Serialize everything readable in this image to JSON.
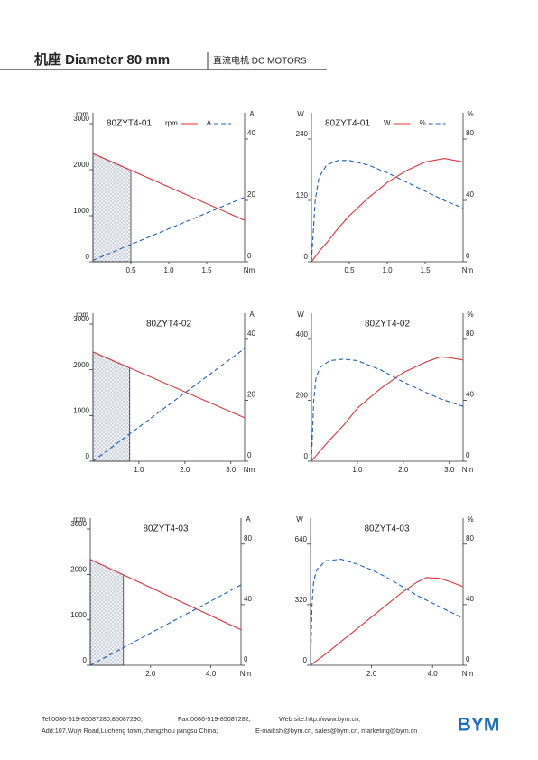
{
  "header": {
    "title": "机座 Diameter 80 mm",
    "subtitle": "直流电机 DC MOTORS"
  },
  "chart_data": [
    {
      "type": "line",
      "title": "80ZYT4-01",
      "xlabel": "Nm",
      "ylabel": "rpm",
      "y2label": "A",
      "x": [
        0,
        2.0
      ],
      "xlim": [
        0,
        2.0
      ],
      "xticks": [
        0.5,
        {
          "value": 1,
          "label": "1.0"
        },
        1.5
      ],
      "ylim": [
        0,
        3000
      ],
      "yticks": [
        0,
        1000,
        2000,
        3000
      ],
      "y2lim": [
        0,
        45
      ],
      "y2ticks": [
        0,
        20,
        40
      ],
      "highlight_x": [
        0,
        0.5
      ],
      "legend": true,
      "series": [
        {
          "name": "rpm",
          "color": "#e3303b",
          "line": "solid",
          "values": [
            2350,
            900
          ]
        },
        {
          "name": "A",
          "color": "#1f5fb0",
          "line": "dashed",
          "axis": "y2",
          "values": [
            0.5,
            21
          ]
        }
      ]
    },
    {
      "type": "line",
      "title": "80ZYT4-01",
      "xlabel": "Nm",
      "ylabel": "W",
      "y2label": "%",
      "x": [
        0,
        0.05,
        0.1,
        0.2,
        0.35,
        0.5,
        0.75,
        1.0,
        1.25,
        1.5,
        1.75,
        2.0
      ],
      "xlim": [
        0,
        2.0
      ],
      "xticks": [
        0.5,
        {
          "value": 1,
          "label": "1.0"
        },
        1.5
      ],
      "ylim": [
        0,
        270
      ],
      "yticks": [
        0,
        120,
        240
      ],
      "y2lim": [
        0,
        90
      ],
      "y2ticks": [
        0,
        40,
        80
      ],
      "legend": true,
      "series": [
        {
          "name": "W",
          "color": "#e3303b",
          "line": "solid",
          "values": [
            0,
            10,
            20,
            37,
            65,
            90,
            125,
            155,
            178,
            195,
            202,
            195
          ]
        },
        {
          "name": "%",
          "color": "#1f5fb0",
          "line": "dashed",
          "axis": "y2",
          "values": [
            0,
            40,
            55,
            63,
            66,
            66,
            63,
            58,
            52,
            46,
            40,
            35
          ]
        }
      ]
    },
    {
      "type": "line",
      "title": "80ZYT4-02",
      "xlabel": "Nm",
      "ylabel": "rpm",
      "y2label": "A",
      "x": [
        0,
        3.3
      ],
      "xlim": [
        0,
        3.3
      ],
      "xticks": [
        {
          "value": 1,
          "label": "1.0"
        },
        {
          "value": 2,
          "label": "2.0"
        },
        {
          "value": 3,
          "label": "3.0"
        }
      ],
      "ylim": [
        0,
        3000
      ],
      "yticks": [
        0,
        1000,
        2000,
        3000
      ],
      "y2lim": [
        0,
        45
      ],
      "y2ticks": [
        0,
        20,
        40
      ],
      "highlight_x": [
        0,
        0.8
      ],
      "series": [
        {
          "color": "#e3303b",
          "line": "solid",
          "values": [
            2390,
            950
          ]
        },
        {
          "color": "#1f5fb0",
          "line": "dashed",
          "axis": "y2",
          "values": [
            0,
            37
          ]
        }
      ]
    },
    {
      "type": "line",
      "title": "80ZYT4-02",
      "xlabel": "Nm",
      "ylabel": "W",
      "y2label": "%",
      "x": [
        0,
        0.05,
        0.1,
        0.2,
        0.4,
        0.7,
        1.0,
        1.5,
        2.0,
        2.5,
        2.8,
        3.0,
        3.3
      ],
      "xlim": [
        0,
        3.3
      ],
      "xticks": [
        {
          "value": 1,
          "label": "1.0"
        },
        {
          "value": 2,
          "label": "2.0"
        },
        {
          "value": 3,
          "label": "3.0"
        }
      ],
      "ylim": [
        0,
        450
      ],
      "yticks": [
        0,
        200,
        400
      ],
      "y2lim": [
        0,
        90
      ],
      "y2ticks": [
        0,
        40,
        80
      ],
      "series": [
        {
          "color": "#e3303b",
          "line": "solid",
          "values": [
            0,
            9,
            18,
            36,
            70,
            118,
            174,
            238,
            291,
            326,
            342,
            340,
            332
          ]
        },
        {
          "color": "#1f5fb0",
          "line": "dashed",
          "axis": "y2",
          "values": [
            0,
            40,
            55,
            62,
            66,
            67,
            66,
            60,
            52,
            45,
            41,
            39,
            36
          ]
        }
      ]
    },
    {
      "type": "line",
      "title": "80ZYT4-03",
      "xlabel": "Nm",
      "ylabel": "rpm",
      "y2label": "A",
      "x": [
        0,
        5.0
      ],
      "xlim": [
        0,
        5.0
      ],
      "xticks": [
        {
          "value": 2,
          "label": "2.0"
        },
        {
          "value": 4,
          "label": "4.0"
        }
      ],
      "ylim": [
        0,
        3000
      ],
      "yticks": [
        0,
        1000,
        2000,
        3000
      ],
      "y2lim": [
        0,
        90
      ],
      "y2ticks": [
        0,
        40,
        80
      ],
      "highlight_x": [
        0,
        1.1
      ],
      "series": [
        {
          "color": "#e3303b",
          "line": "solid",
          "values": [
            2330,
            780
          ]
        },
        {
          "color": "#1f5fb0",
          "line": "dashed",
          "axis": "y2",
          "values": [
            0,
            53
          ]
        }
      ]
    },
    {
      "type": "line",
      "title": "80ZYT4-03",
      "xlabel": "Nm",
      "ylabel": "W",
      "y2label": "%",
      "x": [
        0,
        0.05,
        0.1,
        0.2,
        0.5,
        1.0,
        1.5,
        2.0,
        2.5,
        3.0,
        3.5,
        3.8,
        4.2,
        4.6,
        5.0
      ],
      "xlim": [
        0,
        5.0
      ],
      "xticks": [
        {
          "value": 2,
          "label": "2.0"
        },
        {
          "value": 4,
          "label": "4.0"
        }
      ],
      "ylim": [
        0,
        720
      ],
      "yticks": [
        0,
        320,
        640
      ],
      "y2lim": [
        0,
        90
      ],
      "y2ticks": [
        0,
        40,
        80
      ],
      "series": [
        {
          "color": "#e3303b",
          "line": "solid",
          "values": [
            0,
            6,
            12,
            24,
            60,
            125,
            190,
            255,
            320,
            385,
            440,
            463,
            460,
            440,
            415
          ]
        },
        {
          "color": "#1f5fb0",
          "line": "dashed",
          "axis": "y2",
          "values": [
            0,
            40,
            55,
            63,
            69,
            70,
            67,
            63,
            58,
            52,
            46,
            43,
            39,
            35,
            31
          ]
        }
      ]
    }
  ],
  "footer": {
    "tel": "Tel:0086-519-85087280,85087290;",
    "fax": "Fax:0086-519-85087282;",
    "web": "Web site:http://www.bym.cn;",
    "address": "Add:107,Wuyi Road,Lucheng town,changzhou jiangsu China;",
    "email": "E-mail:shi@bym.cn, sales@bym.cn, marketing@bym.cn",
    "logo": "BYM"
  }
}
